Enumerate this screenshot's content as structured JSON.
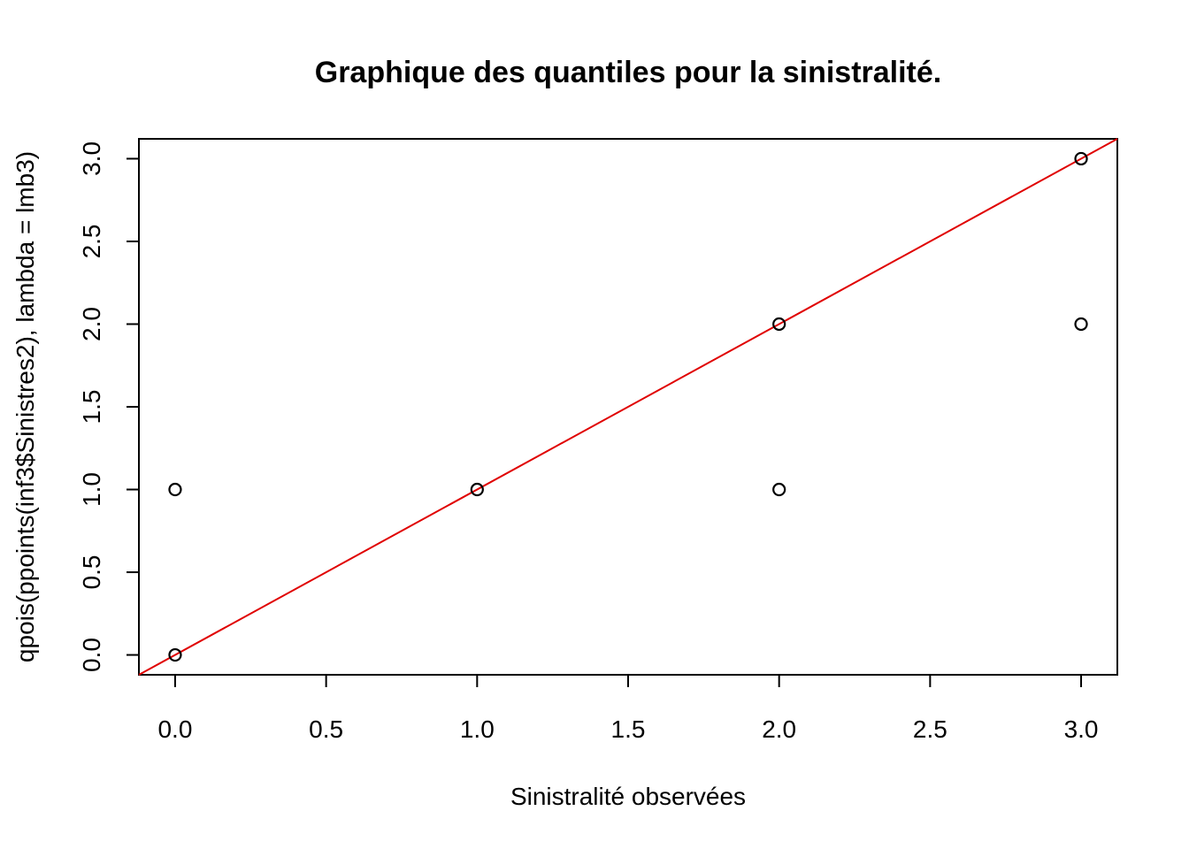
{
  "chart_data": {
    "type": "scatter",
    "title": "Graphique des quantiles pour la sinistralité.",
    "xlabel": "Sinistralité observées",
    "ylabel": "qpois(ppoints(inf3$Sinistres2), lambda = lmb3)",
    "xlim": [
      -0.12,
      3.12
    ],
    "ylim": [
      -0.12,
      3.12
    ],
    "xticks": [
      "0.0",
      "0.5",
      "1.0",
      "1.5",
      "2.0",
      "2.5",
      "3.0"
    ],
    "yticks": [
      "0.0",
      "0.5",
      "1.0",
      "1.5",
      "2.0",
      "2.5",
      "3.0"
    ],
    "points": [
      {
        "x": 0,
        "y": 0
      },
      {
        "x": 0,
        "y": 1
      },
      {
        "x": 1,
        "y": 1
      },
      {
        "x": 2,
        "y": 1
      },
      {
        "x": 2,
        "y": 2
      },
      {
        "x": 3,
        "y": 2
      },
      {
        "x": 3,
        "y": 3
      }
    ],
    "reference_line": {
      "intercept": 0,
      "slope": 1,
      "color": "#e00000"
    },
    "point_color": "#000000",
    "grid": false,
    "legend": "none"
  }
}
